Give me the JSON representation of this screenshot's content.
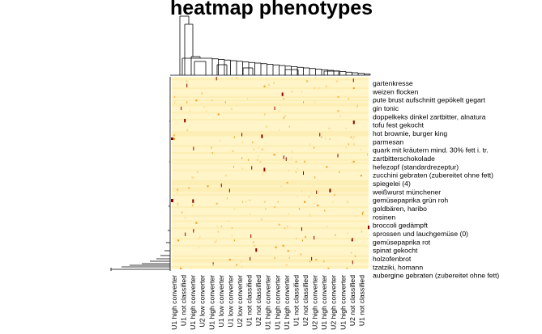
{
  "chart_data": {
    "type": "heatmap",
    "title": "heatmap phenotypes",
    "row_labels": [
      "gartenkresse",
      "weizen flocken",
      "pute brust aufschnitt gepökelt gegart",
      "gin tonic",
      "doppelkeks dinkel zartbitter, alnatura",
      "tofu fest gekocht",
      "hot brownie, burger king",
      "parmesan",
      "quark mit kräutern mind. 30% fett i. tr.",
      "zartbitterschokolade",
      "hefezopf (standardrezeptur)",
      "zucchini gebraten (zubereitet ohne fett)",
      "spiegelei (4)",
      "weißwurst münchener",
      "gemüsepaprika grün roh",
      "goldbären, haribo",
      "rosinen",
      "broccoli gedämpft",
      "sprossen und lauchgemüse (0)",
      "gemüsepaprika rot",
      "spinat gekocht",
      "holzofenbrot",
      "tzatziki, homann",
      "aubergine gebraten (zubereitet ohne fett)"
    ],
    "column_labels": [
      "U1 high converter",
      "U1 not classified",
      "U1 high converter",
      "U2 low converter",
      "U1 high converter",
      "U1 low converter",
      "U1 low converter",
      "U2 low converter",
      "U1 not classified",
      "U2 not classified",
      "U1 high converter",
      "U1 high converter",
      "U1 high converter",
      "U1 not classified",
      "U2 not classified",
      "U2 high converter",
      "U1 high converter",
      "U2 high converter",
      "U1 high converter",
      "U2 not classified",
      "U1 not classified"
    ],
    "colors": {
      "low": "#fff5c8",
      "mid": "#f39a1e",
      "high": "#8b0000"
    },
    "note_scale": "mostly low values with sparse high cells"
  }
}
